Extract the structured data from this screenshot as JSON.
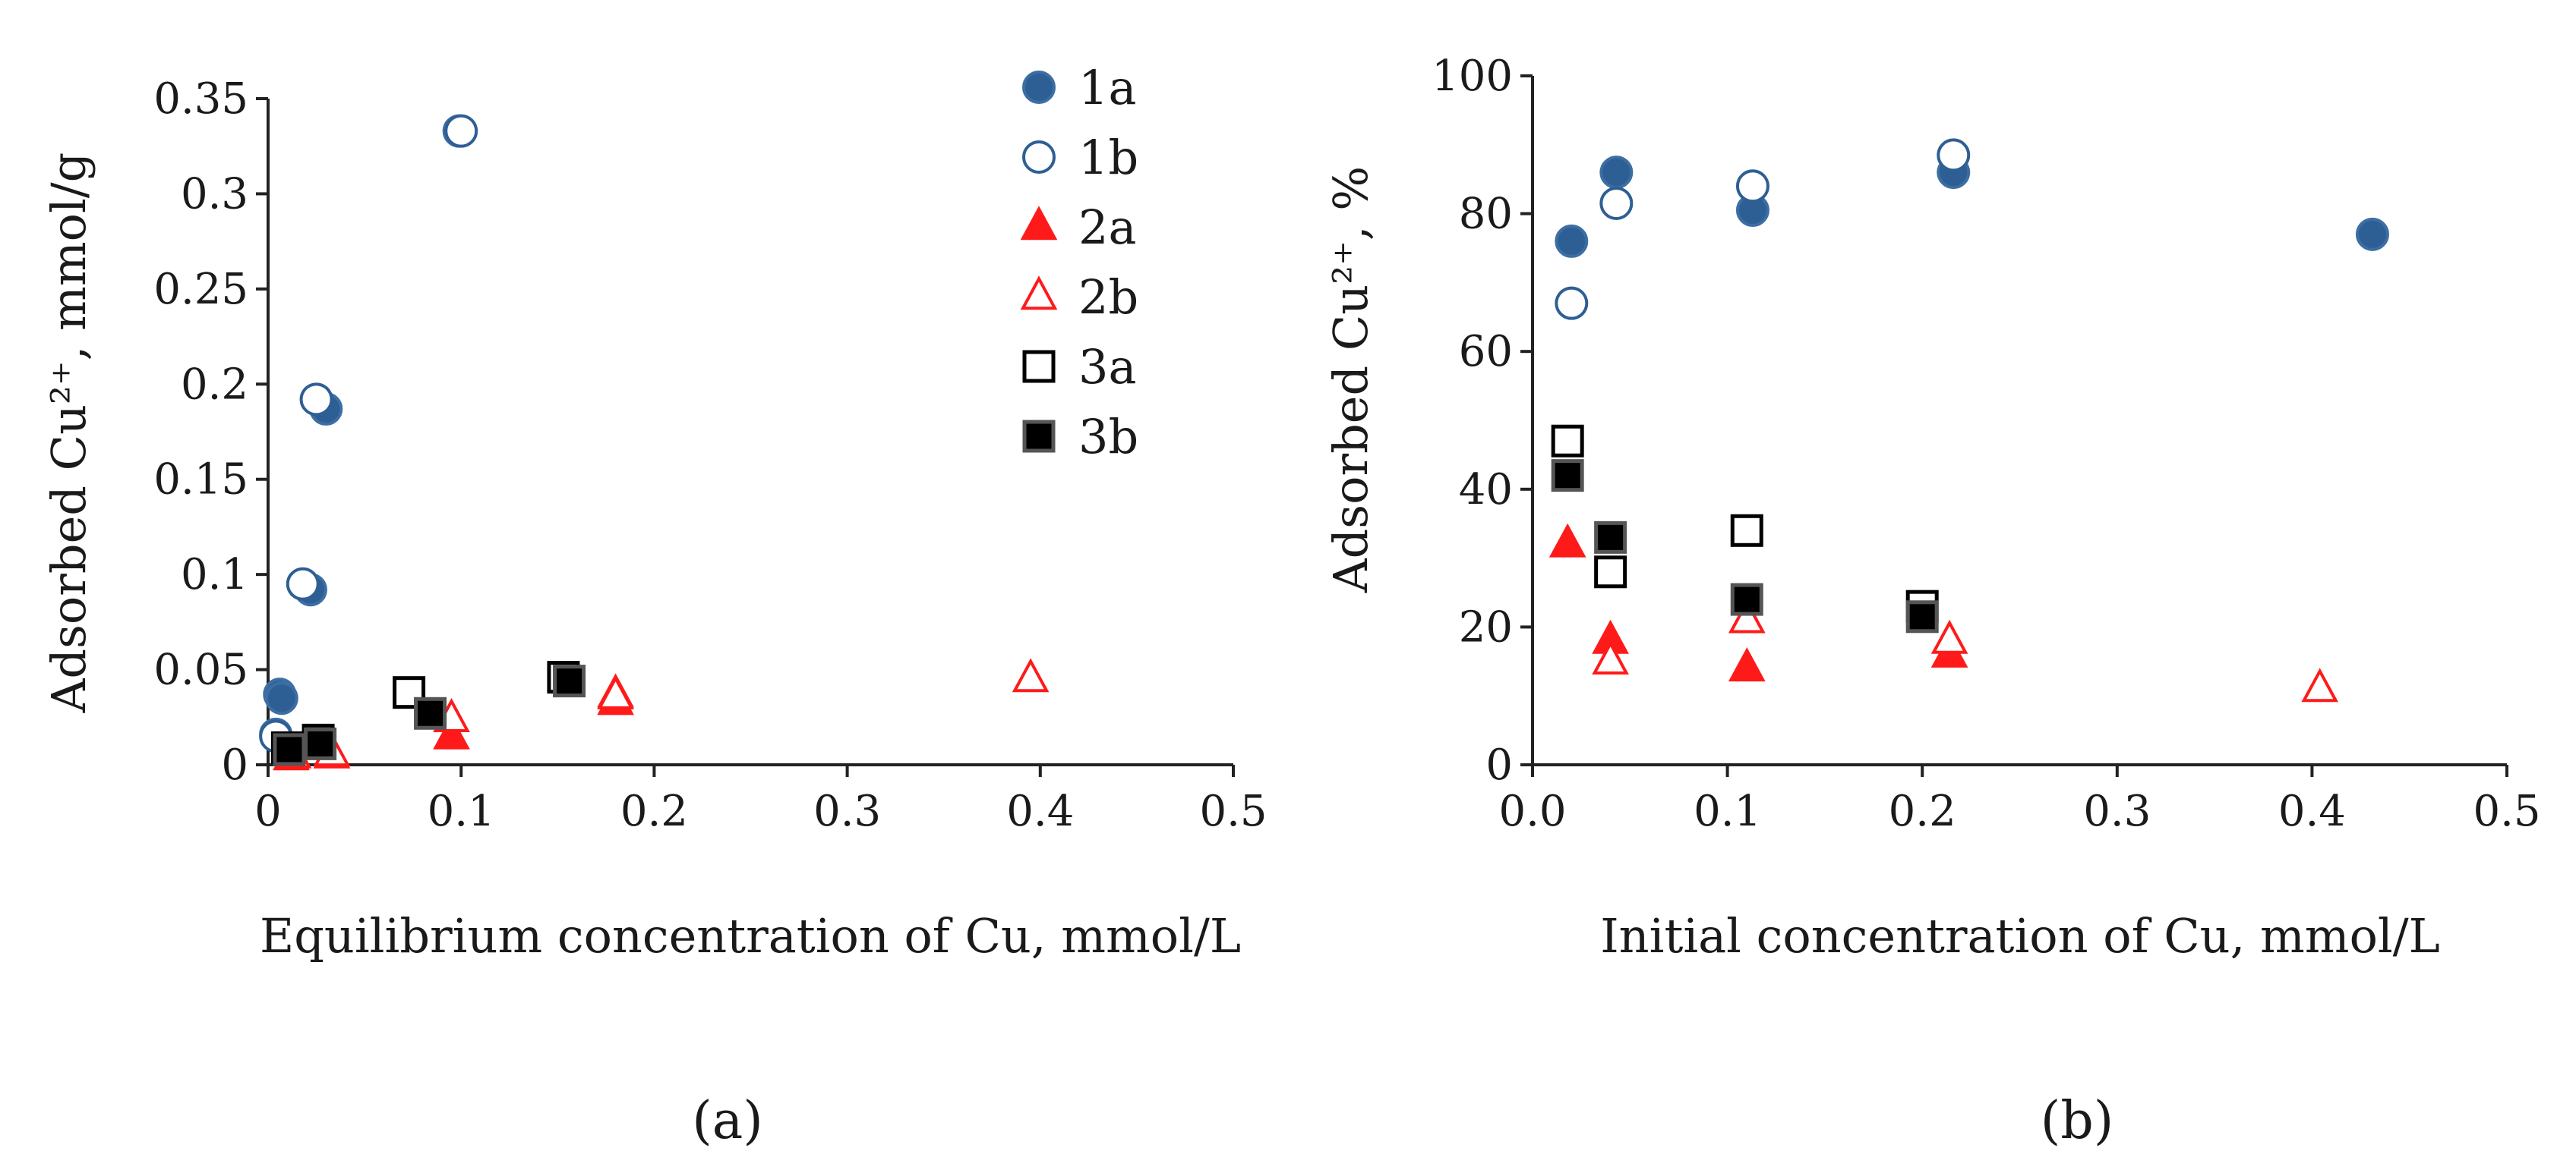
{
  "chart_data": [
    {
      "type": "scatter",
      "panel_label": "(a)",
      "xlabel": "Equilibrium concentration of Cu, mmol/L",
      "ylabel": "Adsorbed Cu²⁺, mmol/g",
      "xlim": [
        0,
        0.5
      ],
      "ylim": [
        0,
        0.35
      ],
      "x_ticks": [
        "0",
        "0.1",
        "0.2",
        "0.3",
        "0.4",
        "0.5"
      ],
      "y_ticks": [
        "0",
        "0.05",
        "0.1",
        "0.15",
        "0.2",
        "0.25",
        "0.3",
        "0.35"
      ],
      "legend_position": "top-right",
      "series": [
        {
          "name": "1a",
          "marker": "circle",
          "filled": true,
          "color": "#2e5f94",
          "x": [
            0.004,
            0.006,
            0.007,
            0.022,
            0.03,
            0.099
          ],
          "y": [
            0.016,
            0.037,
            0.035,
            0.092,
            0.187,
            0.333
          ]
        },
        {
          "name": "1b",
          "marker": "circle",
          "filled": false,
          "color": "#2e5f94",
          "x": [
            0.004,
            0.018,
            0.025,
            0.1
          ],
          "y": [
            0.015,
            0.095,
            0.192,
            0.333
          ]
        },
        {
          "name": "2a",
          "marker": "triangle",
          "filled": true,
          "color": "#ff1a1a",
          "x": [
            0.012,
            0.033,
            0.095,
            0.18,
            0.18
          ],
          "y": [
            0.004,
            0.005,
            0.015,
            0.037,
            0.033
          ]
        },
        {
          "name": "2b",
          "marker": "triangle",
          "filled": false,
          "color": "#ff1a1a",
          "x": [
            0.013,
            0.033,
            0.095,
            0.18,
            0.395
          ],
          "y": [
            0.005,
            0.006,
            0.024,
            0.036,
            0.045
          ]
        },
        {
          "name": "3a",
          "marker": "square",
          "filled": false,
          "color": "#000000",
          "x": [
            0.01,
            0.026,
            0.073,
            0.153
          ],
          "y": [
            0.009,
            0.013,
            0.038,
            0.046
          ]
        },
        {
          "name": "3b",
          "marker": "square",
          "filled": true,
          "color": "#000000",
          "x": [
            0.011,
            0.027,
            0.084,
            0.156
          ],
          "y": [
            0.008,
            0.011,
            0.027,
            0.044
          ]
        }
      ]
    },
    {
      "type": "scatter",
      "panel_label": "(b)",
      "xlabel": "Initial concentration of Cu, mmol/L",
      "ylabel": "Adsorbed Cu²⁺, %",
      "xlim": [
        0,
        0.5
      ],
      "ylim": [
        0,
        100
      ],
      "x_ticks": [
        "0.0",
        "0.1",
        "0.2",
        "0.3",
        "0.4",
        "0.5"
      ],
      "y_ticks": [
        "0",
        "20",
        "40",
        "60",
        "80",
        "100"
      ],
      "series": [
        {
          "name": "1a",
          "marker": "circle",
          "filled": true,
          "color": "#2e5f94",
          "x": [
            0.02,
            0.043,
            0.113,
            0.216,
            0.431
          ],
          "y": [
            76,
            86,
            80.5,
            86,
            77
          ]
        },
        {
          "name": "1b",
          "marker": "circle",
          "filled": false,
          "color": "#2e5f94",
          "x": [
            0.02,
            0.043,
            0.113,
            0.216
          ],
          "y": [
            67,
            81.5,
            84,
            88.5
          ]
        },
        {
          "name": "2a",
          "marker": "triangle",
          "filled": true,
          "color": "#ff1a1a",
          "x": [
            0.018,
            0.04,
            0.11,
            0.214
          ],
          "y": [
            32,
            18,
            14,
            16
          ]
        },
        {
          "name": "2b",
          "marker": "triangle",
          "filled": false,
          "color": "#ff1a1a",
          "x": [
            0.04,
            0.11,
            0.214,
            0.404
          ],
          "y": [
            15,
            21,
            18,
            11
          ]
        },
        {
          "name": "3a",
          "marker": "square",
          "filled": false,
          "color": "#000000",
          "x": [
            0.018,
            0.04,
            0.11,
            0.2
          ],
          "y": [
            47,
            28,
            34,
            23
          ]
        },
        {
          "name": "3b",
          "marker": "square",
          "filled": true,
          "color": "#000000",
          "x": [
            0.018,
            0.04,
            0.11,
            0.2
          ],
          "y": [
            42,
            33,
            24,
            21.5
          ]
        }
      ]
    }
  ]
}
